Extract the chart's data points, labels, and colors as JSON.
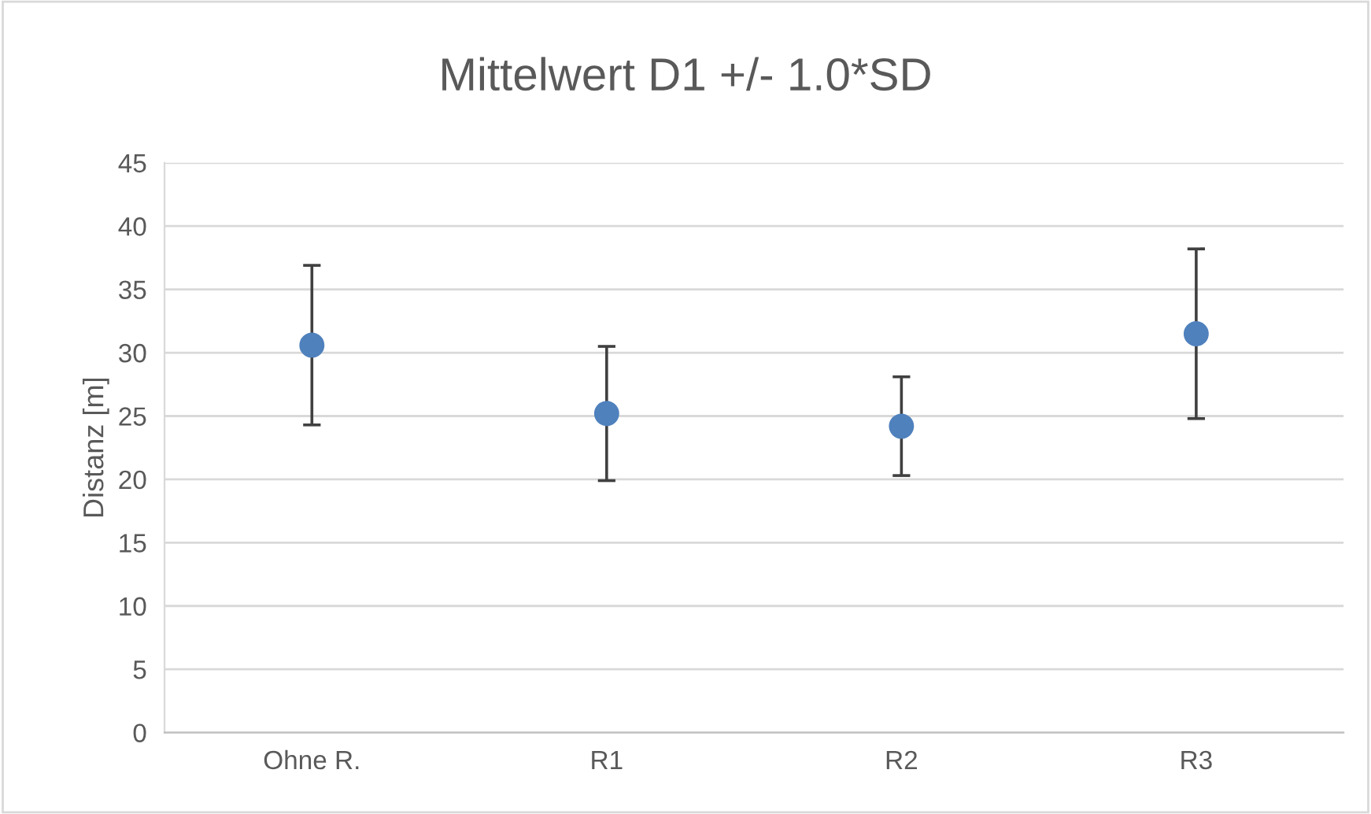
{
  "chart_data": {
    "type": "scatter",
    "title": "Mittelwert D1 +/- 1.0*SD",
    "ylabel": "Distanz [m]",
    "categories": [
      "Ohne R.",
      "R1",
      "R2",
      "R3"
    ],
    "series": [
      {
        "color": "#4f81bd",
        "values": [
          30.6,
          25.2,
          24.2,
          31.5
        ],
        "errors": [
          6.3,
          5.3,
          3.9,
          6.7
        ]
      }
    ],
    "ylim": [
      0,
      45
    ],
    "yticks": [
      0,
      5,
      10,
      15,
      20,
      25,
      30,
      35,
      40,
      45
    ],
    "grid": "y",
    "marker": "circle",
    "legend": false
  }
}
